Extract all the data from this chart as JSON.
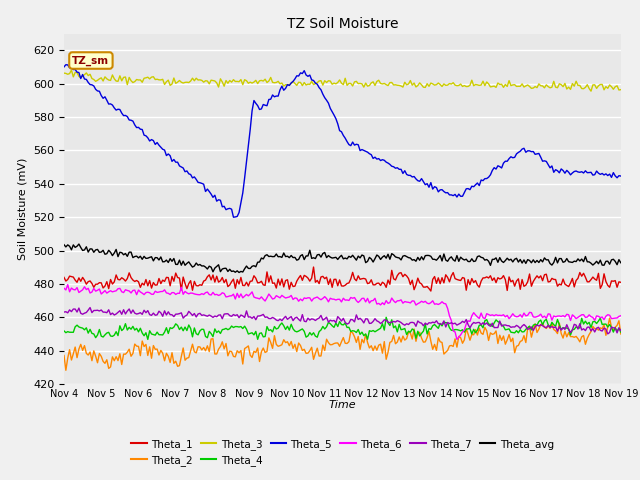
{
  "title": "TZ Soil Moisture",
  "xlabel": "Time",
  "ylabel": "Soil Moisture (mV)",
  "ylim": [
    420,
    630
  ],
  "xlim": [
    0,
    15
  ],
  "bg_color": "#e8e8e8",
  "fig_color": "#f0f0f0",
  "x_tick_labels": [
    "Nov 4",
    "Nov 5",
    "Nov 6",
    "Nov 7",
    "Nov 8",
    "Nov 9",
    "Nov 10",
    "Nov 11",
    "Nov 12",
    "Nov 13",
    "Nov 14",
    "Nov 15",
    "Nov 16",
    "Nov 17",
    "Nov 18",
    "Nov 19"
  ],
  "colors": {
    "Theta_1": "#dd0000",
    "Theta_2": "#ff8800",
    "Theta_3": "#cccc00",
    "Theta_4": "#00cc00",
    "Theta_5": "#0000dd",
    "Theta_6": "#ff00ff",
    "Theta_7": "#9900bb",
    "Theta_avg": "#000000"
  }
}
